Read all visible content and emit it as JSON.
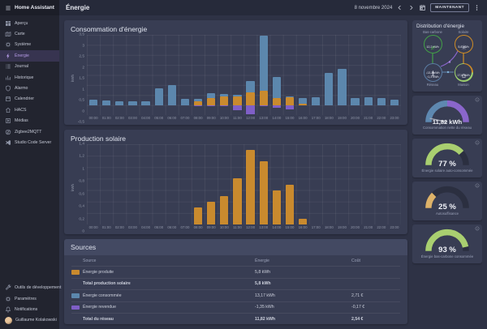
{
  "app": {
    "title": "Home Assistant"
  },
  "topbar": {
    "title": "Énergie",
    "date": "8 novembre 2024",
    "now_button": "MAINTENANT"
  },
  "sidebar": {
    "items": [
      {
        "label": "Aperçu",
        "icon": "view-dashboard",
        "selected": false
      },
      {
        "label": "Carte",
        "icon": "map",
        "selected": false
      },
      {
        "label": "Système",
        "icon": "cog",
        "selected": false
      },
      {
        "label": "Énergie",
        "icon": "flash",
        "selected": true
      },
      {
        "label": "Journal",
        "icon": "list",
        "selected": false
      },
      {
        "label": "Historique",
        "icon": "history",
        "selected": false
      },
      {
        "label": "Alarmo",
        "icon": "shield",
        "selected": false
      },
      {
        "label": "Calendrier",
        "icon": "calendar",
        "selected": false
      },
      {
        "label": "HACS",
        "icon": "hacs",
        "selected": false
      },
      {
        "label": "Médias",
        "icon": "media",
        "selected": false
      },
      {
        "label": "Zigbee2MQTT",
        "icon": "zigbee",
        "selected": false
      },
      {
        "label": "Studio Code Server",
        "icon": "vscode",
        "selected": false
      }
    ],
    "footer": [
      {
        "label": "Outils de développement",
        "icon": "wrench"
      },
      {
        "label": "Paramètres",
        "icon": "cog"
      },
      {
        "label": "Notifications",
        "icon": "bell"
      }
    ],
    "user": {
      "name": "Guillaume Kolakowski"
    }
  },
  "chart_data": [
    {
      "type": "bar",
      "stacked": true,
      "title": "Consommation d'énergie",
      "ylabel": "kWh",
      "ylim": [
        -0.5,
        3.5
      ],
      "yticks": [
        "3,5",
        "3",
        "2,5",
        "2",
        "1,5",
        "1",
        "0,5",
        "0",
        "-0,5"
      ],
      "grid": true,
      "categories": [
        "00:00",
        "01:00",
        "02:00",
        "03:00",
        "04:00",
        "05:00",
        "06:00",
        "07:00",
        "08:00",
        "09:00",
        "10:00",
        "11:00",
        "12:00",
        "13:00",
        "14:00",
        "15:00",
        "16:00",
        "17:00",
        "18:00",
        "19:00",
        "20:00",
        "21:00",
        "22:00",
        "23:00"
      ],
      "series": [
        {
          "name": "Énergie solaire consommée",
          "color": "#c98a2e",
          "values": [
            0,
            0,
            0,
            0,
            0,
            0,
            0,
            0,
            0.2,
            0.35,
            0.45,
            0.45,
            0.65,
            0.7,
            0.35,
            0.4,
            0.05,
            0,
            0,
            0,
            0,
            0,
            0,
            0
          ]
        },
        {
          "name": "Énergie consommée",
          "color": "#5c87ad",
          "values": [
            0.25,
            0.23,
            0.18,
            0.2,
            0.17,
            0.85,
            1.0,
            0.3,
            0.1,
            0.25,
            0.1,
            0.05,
            0.55,
            2.75,
            1.05,
            0.03,
            0.3,
            0.4,
            1.6,
            1.8,
            0.35,
            0.4,
            0.35,
            0.25
          ]
        },
        {
          "name": "Énergie revendue",
          "color": "#7f5fc7",
          "values": [
            0,
            0,
            0,
            0,
            0,
            0,
            0,
            0,
            -0.05,
            -0.03,
            -0.03,
            -0.27,
            -0.45,
            -0.05,
            -0.15,
            -0.2,
            0,
            0,
            0,
            0,
            0,
            0,
            0,
            0
          ]
        }
      ]
    },
    {
      "type": "bar",
      "stacked": false,
      "title": "Production solaire",
      "ylabel": "kWh",
      "ylim": [
        0,
        1.4
      ],
      "yticks": [
        "1,4",
        "1,2",
        "1",
        "0,8",
        "0,6",
        "0,4",
        "0,2",
        "0"
      ],
      "grid": true,
      "categories": [
        "00:00",
        "01:00",
        "02:00",
        "03:00",
        "04:00",
        "05:00",
        "06:00",
        "07:00",
        "08:00",
        "09:00",
        "10:00",
        "11:00",
        "12:00",
        "13:00",
        "14:00",
        "15:00",
        "16:00",
        "17:00",
        "18:00",
        "19:00",
        "20:00",
        "21:00",
        "22:00",
        "23:00"
      ],
      "series": [
        {
          "name": "Production solaire",
          "color": "#c98a2e",
          "values": [
            0,
            0,
            0,
            0,
            0,
            0,
            0,
            0,
            0.3,
            0.4,
            0.5,
            0.8,
            1.3,
            1.1,
            0.6,
            0.7,
            0.1,
            0,
            0,
            0,
            0,
            0,
            0,
            0
          ]
        }
      ]
    }
  ],
  "distribution": {
    "title": "Distribution d'énergie",
    "nodes": {
      "low_carbon": {
        "label": "Bas-carbone",
        "value": "12,2 kWh",
        "color": "#43a047"
      },
      "solar": {
        "label": "Solaire",
        "value": "5,8 kWh",
        "color": "#cf8c26"
      },
      "grid": {
        "label": "Réseau",
        "consumed": "↓13,2 kWh",
        "returned": "↑1,3 kWh",
        "color": "#5b7ca3"
      },
      "home": {
        "label": "Maison",
        "value": "17,6 kWh"
      }
    }
  },
  "gauges": [
    {
      "type": "needle",
      "value": "11,82 kWh",
      "caption": "Consommation nette du réseau",
      "color_left": "#5e88b0",
      "color_right": "#8a66cb"
    },
    {
      "type": "arc",
      "value": "77 %",
      "percent": 77,
      "color": "#a9cf70",
      "caption": "Énergie solaire auto-consommée"
    },
    {
      "type": "arc",
      "value": "25 %",
      "percent": 25,
      "color": "#ddb269",
      "caption": "Autosuffisance"
    },
    {
      "type": "arc",
      "value": "93 %",
      "percent": 93,
      "color": "#a9cf70",
      "caption": "Énergie bas-carbone consommée"
    }
  ],
  "sources": {
    "title": "Sources",
    "columns": [
      "Source",
      "Énergie",
      "Coût"
    ],
    "rows": [
      {
        "swatch": "#c98a2e",
        "label": "Énergie produite",
        "energy": "5,8 kWh",
        "cost": "",
        "total": false
      },
      {
        "swatch": null,
        "label": "Total production solaire",
        "energy": "5,8 kWh",
        "cost": "",
        "total": true
      },
      {
        "swatch": "#5c87ad",
        "label": "Énergie consommée",
        "energy": "13,17 kWh",
        "cost": "2,71 €",
        "total": false
      },
      {
        "swatch": "#7f5fc7",
        "label": "Énergie revendue",
        "energy": "-1,35 kWh",
        "cost": "-0,17 €",
        "total": false
      },
      {
        "swatch": null,
        "label": "Total du réseau",
        "energy": "11,82 kWh",
        "cost": "2,54 €",
        "total": true
      }
    ]
  }
}
